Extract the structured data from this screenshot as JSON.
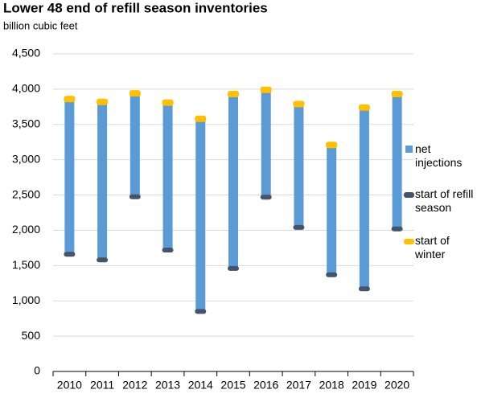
{
  "chart_data": {
    "type": "floating-bar",
    "title": "Lower 48 end of refill season inventories",
    "subtitle": "billion cubic feet",
    "categories": [
      "2010",
      "2011",
      "2012",
      "2013",
      "2014",
      "2015",
      "2016",
      "2017",
      "2018",
      "2019",
      "2020"
    ],
    "series": [
      {
        "name": "net injections",
        "color": "#5b9bd5",
        "values": [
          2200,
          2240,
          1465,
          2090,
          2730,
          2470,
          1520,
          1750,
          1840,
          2570,
          1910
        ]
      },
      {
        "name": "start of refill season",
        "color": "#44546a",
        "values": [
          1660,
          1580,
          2475,
          1720,
          850,
          1460,
          2470,
          2040,
          1370,
          1170,
          2020
        ]
      },
      {
        "name": "start of winter",
        "color": "#ffc000",
        "values": [
          3860,
          3820,
          3940,
          3810,
          3580,
          3930,
          3990,
          3790,
          3210,
          3740,
          3930
        ]
      }
    ],
    "ylim": [
      0,
      4500
    ],
    "yticks": [
      0,
      500,
      {
        "value": 1000,
        "label": "1,000"
      },
      {
        "value": 1500,
        "label": "1,500"
      },
      {
        "value": 2000,
        "label": "2,000"
      },
      {
        "value": 2500,
        "label": "2,500"
      },
      {
        "value": 3000,
        "label": "3,000"
      },
      {
        "value": 3500,
        "label": "3,500"
      },
      {
        "value": 4000,
        "label": "4,000"
      },
      {
        "value": 4500,
        "label": "4,500"
      }
    ],
    "grid": true
  }
}
